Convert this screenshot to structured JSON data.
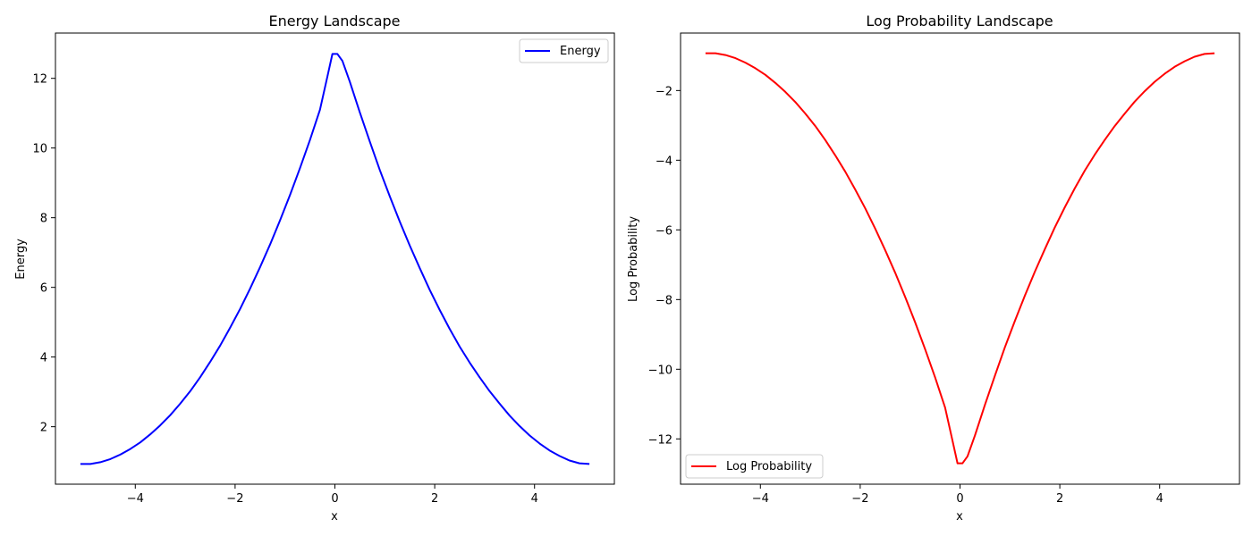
{
  "chart_data": [
    {
      "type": "line",
      "title": "Energy Landscape",
      "xlabel": "x",
      "ylabel": "Energy",
      "xlim": [
        -5.6,
        5.6
      ],
      "ylim": [
        0.35,
        13.3
      ],
      "xticks": [
        -4,
        -2,
        0,
        2,
        4
      ],
      "yticks": [
        2,
        4,
        6,
        8,
        10,
        12
      ],
      "xtick_labels": [
        "−4",
        "−2",
        "0",
        "2",
        "4"
      ],
      "ytick_labels": [
        "2",
        "4",
        "6",
        "8",
        "10",
        "12"
      ],
      "grid": false,
      "legend_position": "upper right",
      "series": [
        {
          "name": "Energy",
          "color": "#0000ff",
          "x": [
            -5.1,
            -4.9,
            -4.7,
            -4.5,
            -4.3,
            -4.1,
            -3.9,
            -3.7,
            -3.5,
            -3.3,
            -3.1,
            -2.9,
            -2.7,
            -2.5,
            -2.3,
            -2.1,
            -1.9,
            -1.7,
            -1.5,
            -1.3,
            -1.1,
            -0.9,
            -0.7,
            -0.5,
            -0.3,
            -0.15,
            -0.05,
            0.05,
            0.15,
            0.3,
            0.5,
            0.7,
            0.9,
            1.1,
            1.3,
            1.5,
            1.7,
            1.9,
            2.1,
            2.3,
            2.5,
            2.7,
            2.9,
            3.1,
            3.3,
            3.5,
            3.7,
            3.9,
            4.1,
            4.3,
            4.5,
            4.7,
            4.9,
            5.1
          ],
          "y": [
            0.93,
            0.93,
            0.98,
            1.07,
            1.2,
            1.36,
            1.55,
            1.78,
            2.04,
            2.33,
            2.66,
            3.02,
            3.42,
            3.86,
            4.33,
            4.84,
            5.38,
            5.96,
            6.58,
            7.23,
            7.92,
            8.65,
            9.42,
            10.23,
            11.1,
            12.05,
            12.7,
            12.7,
            12.5,
            11.9,
            11.02,
            10.18,
            9.37,
            8.61,
            7.89,
            7.2,
            6.55,
            5.93,
            5.35,
            4.81,
            4.3,
            3.84,
            3.42,
            3.02,
            2.66,
            2.32,
            2.02,
            1.75,
            1.52,
            1.32,
            1.16,
            1.03,
            0.95,
            0.93
          ]
        }
      ]
    },
    {
      "type": "line",
      "title": "Log Probability Landscape",
      "xlabel": "x",
      "ylabel": "Log Probability",
      "xlim": [
        -5.6,
        5.6
      ],
      "ylim": [
        -13.3,
        -0.35
      ],
      "xticks": [
        -4,
        -2,
        0,
        2,
        4
      ],
      "yticks": [
        -12,
        -10,
        -8,
        -6,
        -4,
        -2
      ],
      "xtick_labels": [
        "−4",
        "−2",
        "0",
        "2",
        "4"
      ],
      "ytick_labels": [
        "−12",
        "−10",
        "−8",
        "−6",
        "−4",
        "−2"
      ],
      "grid": false,
      "legend_position": "lower left",
      "series": [
        {
          "name": "Log Probability",
          "color": "#ff0000",
          "x": [
            -5.1,
            -4.9,
            -4.7,
            -4.5,
            -4.3,
            -4.1,
            -3.9,
            -3.7,
            -3.5,
            -3.3,
            -3.1,
            -2.9,
            -2.7,
            -2.5,
            -2.3,
            -2.1,
            -1.9,
            -1.7,
            -1.5,
            -1.3,
            -1.1,
            -0.9,
            -0.7,
            -0.5,
            -0.3,
            -0.15,
            -0.05,
            0.05,
            0.15,
            0.3,
            0.5,
            0.7,
            0.9,
            1.1,
            1.3,
            1.5,
            1.7,
            1.9,
            2.1,
            2.3,
            2.5,
            2.7,
            2.9,
            3.1,
            3.3,
            3.5,
            3.7,
            3.9,
            4.1,
            4.3,
            4.5,
            4.7,
            4.9,
            5.1
          ],
          "y": [
            -0.93,
            -0.93,
            -0.98,
            -1.07,
            -1.2,
            -1.36,
            -1.55,
            -1.78,
            -2.04,
            -2.33,
            -2.66,
            -3.02,
            -3.42,
            -3.86,
            -4.33,
            -4.84,
            -5.38,
            -5.96,
            -6.58,
            -7.23,
            -7.92,
            -8.65,
            -9.42,
            -10.23,
            -11.1,
            -12.05,
            -12.7,
            -12.7,
            -12.5,
            -11.9,
            -11.02,
            -10.18,
            -9.37,
            -8.61,
            -7.89,
            -7.2,
            -6.55,
            -5.93,
            -5.35,
            -4.81,
            -4.3,
            -3.84,
            -3.42,
            -3.02,
            -2.66,
            -2.32,
            -2.02,
            -1.75,
            -1.52,
            -1.32,
            -1.16,
            -1.03,
            -0.95,
            -0.93
          ]
        }
      ]
    }
  ]
}
